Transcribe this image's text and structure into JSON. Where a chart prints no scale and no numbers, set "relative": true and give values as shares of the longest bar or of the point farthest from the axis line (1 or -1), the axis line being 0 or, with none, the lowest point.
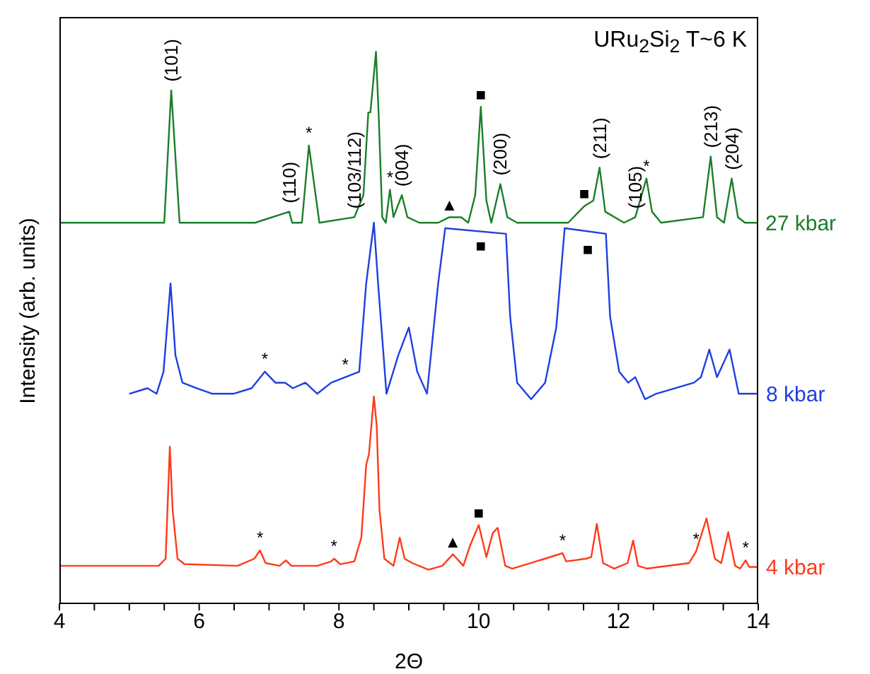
{
  "chart_data": {
    "type": "line",
    "relative": true,
    "xlabel": "2Θ",
    "ylabel": "Intensity (arb. units)",
    "tick_labels": "x",
    "xlim": [
      4,
      14
    ],
    "xticks": [
      4,
      {
        "value": 4.5,
        "label": null
      },
      {
        "value": 5,
        "label": null
      },
      {
        "value": 5.5,
        "label": null
      },
      6,
      {
        "value": 6.5,
        "label": null
      },
      {
        "value": 7,
        "label": null
      },
      {
        "value": 7.5,
        "label": null
      },
      8,
      {
        "value": 8.5,
        "label": null
      },
      {
        "value": 9,
        "label": null
      },
      {
        "value": 9.5,
        "label": null
      },
      10,
      {
        "value": 10.5,
        "label": null
      },
      {
        "value": 11,
        "label": null
      },
      {
        "value": 11.5,
        "label": null
      },
      12,
      {
        "value": 12.5,
        "label": null
      },
      {
        "value": 13,
        "label": null
      },
      {
        "value": 13.5,
        "label": null
      },
      14
    ],
    "series": [
      {
        "name": "27 kbar",
        "color": "#1a7f2a",
        "x": [
          4.0,
          5.2,
          5.5,
          5.6,
          5.72,
          6.8,
          7.29,
          7.33,
          7.47,
          7.57,
          7.72,
          8.22,
          8.35,
          8.42,
          8.45,
          8.53,
          8.57,
          8.62,
          8.67,
          8.73,
          8.78,
          8.9,
          8.98,
          9.15,
          9.42,
          9.58,
          9.75,
          9.85,
          9.95,
          10.03,
          10.11,
          10.18,
          10.31,
          10.41,
          10.55,
          11.08,
          11.28,
          11.51,
          11.64,
          11.73,
          11.81,
          12.08,
          12.24,
          12.4,
          12.48,
          12.61,
          13.21,
          13.32,
          13.41,
          13.51,
          13.62,
          13.71,
          13.81,
          13.98
        ],
        "values": [
          0.69,
          0.69,
          0.69,
          0.93,
          0.69,
          0.69,
          0.71,
          0.69,
          0.69,
          0.83,
          0.69,
          0.7,
          0.74,
          0.89,
          0.89,
          1.0,
          0.88,
          0.7,
          0.69,
          0.75,
          0.7,
          0.74,
          0.7,
          0.69,
          0.69,
          0.7,
          0.7,
          0.69,
          0.74,
          0.9,
          0.73,
          0.69,
          0.76,
          0.7,
          0.69,
          0.69,
          0.69,
          0.72,
          0.73,
          0.79,
          0.71,
          0.69,
          0.7,
          0.77,
          0.71,
          0.69,
          0.7,
          0.81,
          0.7,
          0.69,
          0.77,
          0.7,
          0.69,
          0.69
        ]
      },
      {
        "name": "8 kbar",
        "color": "#1f3fe0",
        "x": [
          5.0,
          5.26,
          5.39,
          5.49,
          5.59,
          5.66,
          5.76,
          5.96,
          6.19,
          6.49,
          6.75,
          6.94,
          7.09,
          7.23,
          7.34,
          7.52,
          7.69,
          7.89,
          8.09,
          8.29,
          8.39,
          8.5,
          8.56,
          8.68,
          8.85,
          9.0,
          9.12,
          9.26,
          9.42,
          9.52,
          10.39,
          10.45,
          10.55,
          10.75,
          10.95,
          11.11,
          11.23,
          11.82,
          11.88,
          12.01,
          12.14,
          12.24,
          12.38,
          12.54,
          13.08,
          13.18,
          13.3,
          13.41,
          13.59,
          13.72,
          13.99
        ],
        "values": [
          0.38,
          0.39,
          0.38,
          0.42,
          0.58,
          0.45,
          0.4,
          0.39,
          0.38,
          0.38,
          0.39,
          0.42,
          0.4,
          0.4,
          0.39,
          0.4,
          0.38,
          0.4,
          0.41,
          0.42,
          0.58,
          0.69,
          0.58,
          0.38,
          0.45,
          0.5,
          0.42,
          0.38,
          0.58,
          0.68,
          0.67,
          0.52,
          0.4,
          0.37,
          0.4,
          0.5,
          0.68,
          0.67,
          0.52,
          0.42,
          0.4,
          0.41,
          0.37,
          0.38,
          0.4,
          0.41,
          0.46,
          0.41,
          0.46,
          0.38,
          0.38
        ]
      },
      {
        "name": "4 kbar",
        "color": "#ff3a1a",
        "x": [
          4.0,
          5.42,
          5.52,
          5.58,
          5.62,
          5.69,
          5.79,
          6.55,
          6.79,
          6.87,
          6.95,
          7.15,
          7.24,
          7.32,
          7.69,
          7.89,
          7.93,
          8.02,
          8.22,
          8.32,
          8.39,
          8.43,
          8.5,
          8.54,
          8.58,
          8.65,
          8.78,
          8.87,
          8.94,
          9.05,
          9.28,
          9.48,
          9.63,
          9.78,
          9.88,
          10.0,
          10.11,
          10.2,
          10.27,
          10.38,
          10.48,
          10.95,
          11.15,
          11.2,
          11.25,
          11.54,
          11.61,
          11.69,
          11.78,
          11.94,
          12.13,
          12.21,
          12.28,
          12.41,
          13.01,
          13.11,
          13.26,
          13.38,
          13.47,
          13.57,
          13.67,
          13.74,
          13.82,
          13.87,
          13.99
        ],
        "values": [
          0.068,
          0.068,
          0.081,
          0.284,
          0.17,
          0.081,
          0.071,
          0.068,
          0.081,
          0.096,
          0.073,
          0.068,
          0.078,
          0.068,
          0.068,
          0.076,
          0.081,
          0.071,
          0.076,
          0.119,
          0.251,
          0.271,
          0.375,
          0.322,
          0.17,
          0.081,
          0.068,
          0.119,
          0.081,
          0.073,
          0.061,
          0.068,
          0.089,
          0.068,
          0.106,
          0.142,
          0.084,
          0.127,
          0.137,
          0.068,
          0.063,
          0.081,
          0.089,
          0.091,
          0.076,
          0.081,
          0.084,
          0.144,
          0.073,
          0.063,
          0.073,
          0.114,
          0.068,
          0.063,
          0.073,
          0.094,
          0.154,
          0.081,
          0.073,
          0.129,
          0.068,
          0.063,
          0.078,
          0.066,
          0.066
        ]
      }
    ],
    "annotations": [
      "URu$_{2}$Si$_{2}$ T~6 K",
      {
        "text": "(101)",
        "x": 5.6,
        "y": 0.93
      },
      {
        "text": "(110)",
        "x": 7.29,
        "y": 0.71
      },
      {
        "text": "*",
        "x": 7.57,
        "y": 0.83
      },
      {
        "text": "(103/112)",
        "x": 8.22,
        "y": 0.7
      },
      {
        "text": "*",
        "x": 8.73,
        "y": 0.75
      },
      {
        "text": "(004)",
        "x": 8.9,
        "y": 0.74
      },
      {
        "text": "▲",
        "x": 9.58,
        "y": 0.7
      },
      {
        "text": "■",
        "x": 10.03,
        "y": 0.9
      },
      {
        "text": "(200)",
        "x": 10.31,
        "y": 0.76
      },
      {
        "text": "■",
        "x": 11.51,
        "y": 0.72
      },
      {
        "text": "(211)",
        "x": 11.73,
        "y": 0.79
      },
      {
        "text": "(105)",
        "x": 12.24,
        "y": 0.7
      },
      {
        "text": "*",
        "x": 12.4,
        "y": 0.77
      },
      {
        "text": "(213)",
        "x": 13.32,
        "y": 0.81
      },
      {
        "text": "(204)",
        "x": 13.62,
        "y": 0.77
      },
      {
        "text": "*",
        "x": 6.94,
        "y": 0.42
      },
      {
        "text": "*",
        "x": 8.09,
        "y": 0.41
      },
      {
        "text": "■",
        "x": 10.03,
        "y": 0.674
      },
      {
        "text": "■",
        "x": 11.56,
        "y": 0.668
      },
      {
        "text": "*",
        "x": 6.87,
        "y": 0.096
      },
      {
        "text": "*",
        "x": 7.93,
        "y": 0.081
      },
      {
        "text": "▲",
        "x": 9.63,
        "y": 0.089
      },
      {
        "text": "■",
        "x": 10.0,
        "y": 0.142
      },
      {
        "text": "*",
        "x": 11.2,
        "y": 0.091
      },
      {
        "text": "*",
        "x": 13.11,
        "y": 0.094
      },
      {
        "text": "*",
        "x": 13.82,
        "y": 0.078
      }
    ]
  }
}
